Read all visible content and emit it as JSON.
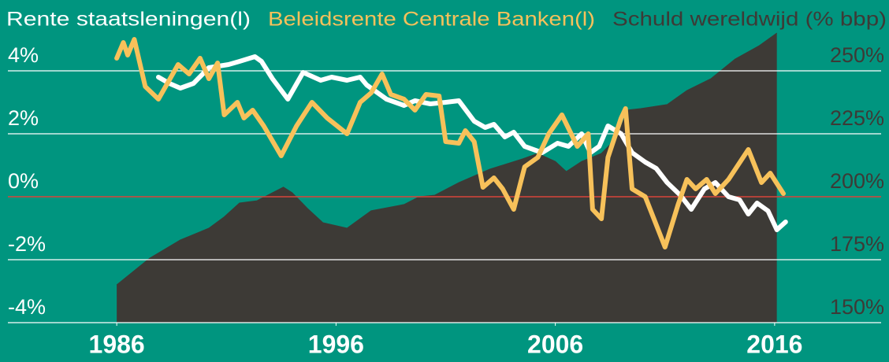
{
  "chart_data": {
    "type": "line",
    "series": [
      {
        "name": "Rente staatsleningen(l)",
        "color": "#ffffff",
        "x": [
          1987.9,
          1988.4,
          1988.9,
          1989.5,
          1990.2,
          1991.1,
          1991.6,
          1992.3,
          1992.6,
          1993.1,
          1993.8,
          1994.5,
          1995.3,
          1995.8,
          1996.5,
          1997.1,
          1997.4,
          1998.3,
          1999.1,
          1999.6,
          2000.3,
          2001.0,
          2001.6,
          2002.3,
          2002.8,
          2003.2,
          2003.7,
          2004.1,
          2004.6,
          2005.4,
          2006.1,
          2006.6,
          2007.2,
          2007.6,
          2008.0,
          2008.4,
          2009.0,
          2009.5,
          2010.1,
          2010.6,
          2011.1,
          2011.7,
          2012.2,
          2012.8,
          2013.3,
          2013.9,
          2014.4,
          2014.8,
          2015.2,
          2015.7,
          2016.1,
          2016.5
        ],
        "values": [
          3.8,
          3.6,
          3.45,
          3.6,
          4.1,
          4.2,
          4.3,
          4.45,
          4.3,
          3.75,
          3.1,
          3.95,
          3.7,
          3.8,
          3.7,
          3.8,
          3.55,
          3.1,
          2.9,
          3.05,
          2.95,
          3.0,
          3.05,
          2.4,
          2.2,
          2.3,
          1.9,
          2.05,
          1.6,
          1.4,
          1.7,
          1.6,
          2.0,
          1.4,
          1.6,
          2.25,
          2.0,
          1.4,
          1.1,
          0.9,
          0.45,
          0.05,
          -0.4,
          0.25,
          0.45,
          0.0,
          -0.1,
          -0.55,
          -0.2,
          -0.45,
          -1.05,
          -0.8
        ]
      },
      {
        "name": "Beleidsrente Centrale Banken(l)",
        "color": "#f7c15a",
        "x": [
          1986.0,
          1986.3,
          1986.5,
          1986.8,
          1987.3,
          1987.9,
          1988.8,
          1989.3,
          1989.8,
          1990.2,
          1990.6,
          1990.9,
          1991.5,
          1991.8,
          1992.2,
          1992.7,
          1993.5,
          1994.2,
          1994.9,
          1995.6,
          1996.5,
          1997.1,
          1997.6,
          1998.1,
          1998.5,
          1999.1,
          1999.6,
          2000.1,
          2000.7,
          2001.0,
          2001.6,
          2001.9,
          2002.3,
          2002.7,
          2003.2,
          2003.6,
          2004.1,
          2004.6,
          2005.2,
          2005.7,
          2006.3,
          2007.0,
          2007.5,
          2007.7,
          2008.1,
          2008.4,
          2009.0,
          2009.2,
          2009.5,
          2010.1,
          2011.0,
          2011.6,
          2012.0,
          2012.4,
          2012.9,
          2013.3,
          2013.9,
          2014.8,
          2015.4,
          2015.8,
          2016.4
        ],
        "values": [
          4.4,
          4.9,
          4.5,
          5.0,
          3.5,
          3.1,
          4.2,
          3.9,
          4.4,
          3.75,
          4.25,
          2.6,
          3.0,
          2.5,
          2.75,
          2.25,
          1.3,
          2.25,
          3.0,
          2.5,
          2.0,
          3.0,
          3.3,
          3.9,
          3.25,
          3.1,
          2.75,
          3.25,
          3.2,
          1.75,
          1.7,
          2.1,
          1.75,
          0.3,
          0.6,
          0.25,
          -0.4,
          0.95,
          1.25,
          2.0,
          2.6,
          1.6,
          2.0,
          -0.4,
          -0.7,
          1.25,
          2.5,
          2.8,
          0.25,
          0.0,
          -1.6,
          -0.25,
          0.55,
          0.25,
          0.55,
          0.1,
          0.55,
          1.5,
          0.45,
          0.75,
          0.1
        ]
      },
      {
        "name": "Schuld wereldwijd (% bbp)",
        "color": "#3d3a36",
        "type": "area",
        "axis": "y2",
        "x": [
          1986.0,
          1987.5,
          1988.9,
          1990.2,
          1990.9,
          1991.6,
          1992.4,
          1993.1,
          1993.6,
          1994.0,
          1994.7,
          1995.4,
          1996.5,
          1997.6,
          1999.1,
          1999.8,
          2000.5,
          2001.6,
          2003.0,
          2004.5,
          2005.2,
          2006.0,
          2006.5,
          2007.2,
          2008.1,
          2008.8,
          2009.3,
          2009.9,
          2011.1,
          2012.0,
          2013.1,
          2014.2,
          2015.3,
          2016.1
        ],
        "values": [
          165,
          175.6,
          182.8,
          187.5,
          192,
          197.5,
          198.4,
          201.6,
          203.8,
          201.6,
          195.3,
          189.7,
          187.5,
          194.4,
          196.9,
          200,
          200.6,
          205.6,
          210.9,
          215,
          217.2,
          214,
          210,
          214,
          217.2,
          223.4,
          234.4,
          235,
          236.6,
          242.2,
          246.9,
          254.7,
          260,
          265
        ]
      }
    ],
    "xlim": [
      1981,
      2021
    ],
    "xticks": [
      1986,
      1996,
      2006,
      2016
    ],
    "ylim": [
      -4,
      5.2
    ],
    "yticks": [
      {
        "value": -4,
        "label": "-4%"
      },
      {
        "value": -2,
        "label": "-2%"
      },
      {
        "value": 0,
        "label": "0%"
      },
      {
        "value": 2,
        "label": "2%"
      },
      {
        "value": 4,
        "label": "4%"
      }
    ],
    "y2lim": [
      150,
      265
    ],
    "y2ticks": [
      {
        "value": 150,
        "label": "150%"
      },
      {
        "value": 175,
        "label": "175%"
      },
      {
        "value": 200,
        "label": "200%"
      },
      {
        "value": 225,
        "label": "225%"
      },
      {
        "value": 250,
        "label": "250%"
      }
    ],
    "grid": true,
    "zero_line_color": "#d9443a",
    "background": "#00957f"
  }
}
